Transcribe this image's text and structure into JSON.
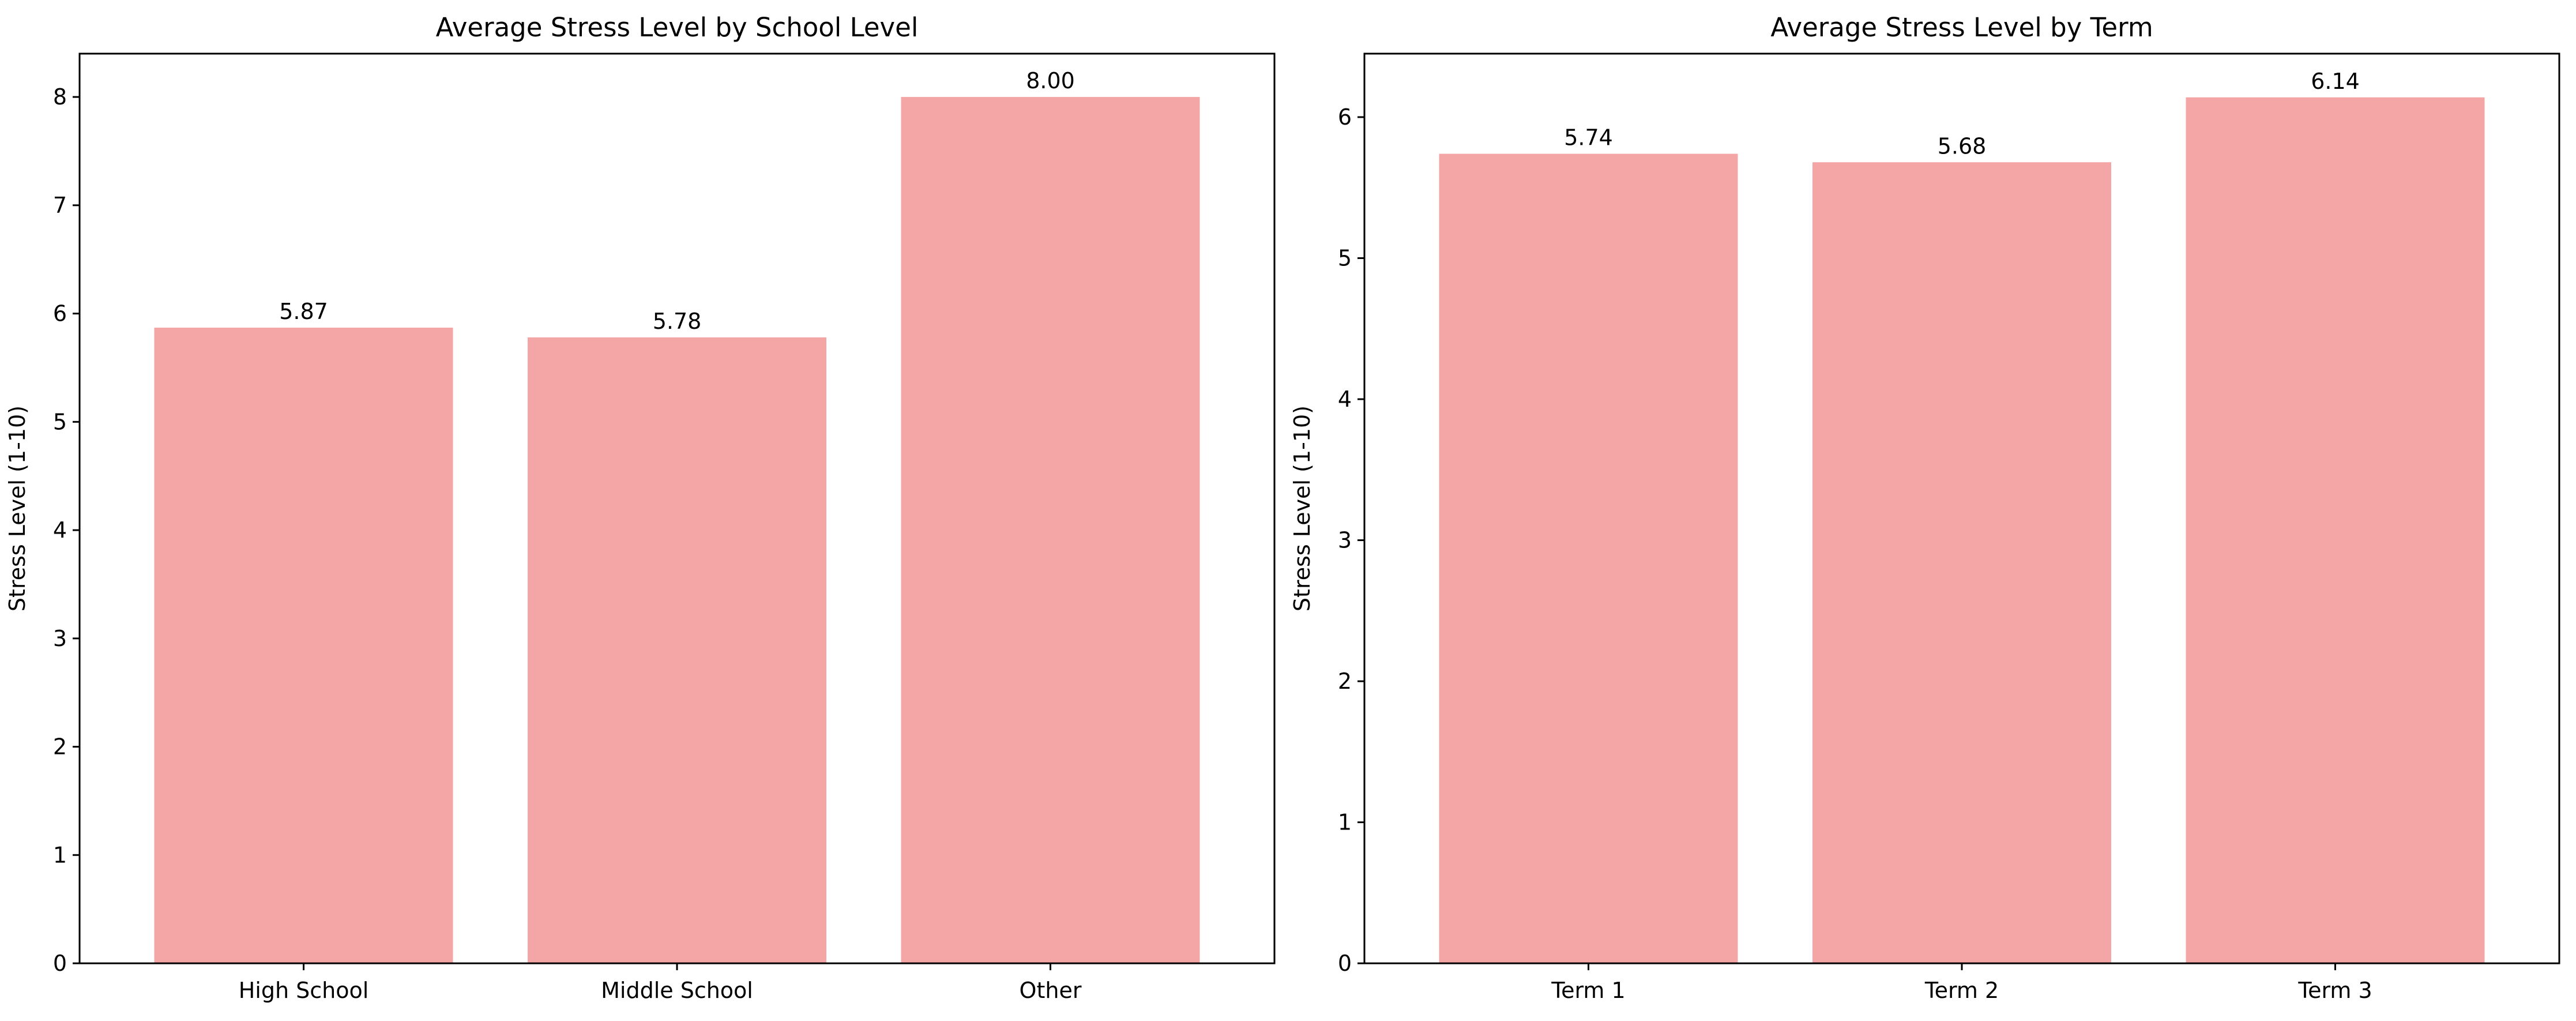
{
  "chart_data": [
    {
      "type": "bar",
      "title": "Average Stress Level by School Level",
      "xlabel": "",
      "ylabel": "Stress Level (1-10)",
      "categories": [
        "High School",
        "Middle School",
        "Other"
      ],
      "values": [
        5.87,
        5.78,
        8.0
      ],
      "value_labels": [
        "5.87",
        "5.78",
        "8.00"
      ],
      "ylim": [
        0,
        8.4
      ],
      "yticks": [
        0,
        1,
        2,
        3,
        4,
        5,
        6,
        7,
        8
      ],
      "bar_color": "#f4a6a6",
      "grid": false,
      "legend": "none"
    },
    {
      "type": "bar",
      "title": "Average Stress Level by Term",
      "xlabel": "",
      "ylabel": "Stress Level (1-10)",
      "categories": [
        "Term 1",
        "Term 2",
        "Term 3"
      ],
      "values": [
        5.74,
        5.68,
        6.14
      ],
      "value_labels": [
        "5.74",
        "5.68",
        "6.14"
      ],
      "ylim": [
        0,
        6.45
      ],
      "yticks": [
        0,
        1,
        2,
        3,
        4,
        5,
        6
      ],
      "bar_color": "#f4a6a6",
      "grid": false,
      "legend": "none"
    }
  ]
}
